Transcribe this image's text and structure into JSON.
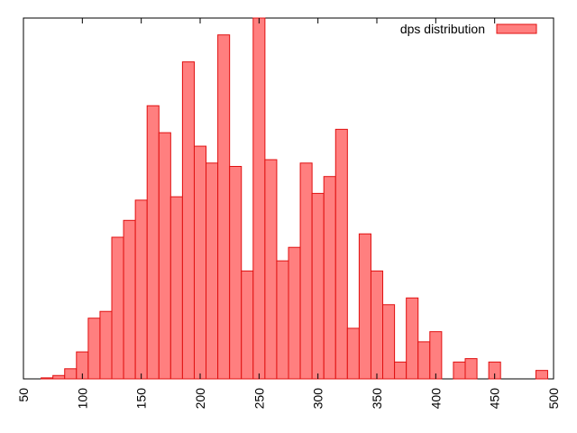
{
  "chart_data": {
    "type": "bar",
    "legend": {
      "label": "dps distribution",
      "position": "top-right"
    },
    "xlim": [
      50,
      500
    ],
    "x_ticks": [
      "50",
      "100",
      "150",
      "200",
      "250",
      "300",
      "350",
      "400",
      "450",
      "500"
    ],
    "grid": false,
    "colors": {
      "fill": "#ff7f7f",
      "stroke": "#e01010"
    },
    "bin_width": 10,
    "bins": [
      {
        "x": 70,
        "value": 0.3
      },
      {
        "x": 80,
        "value": 1
      },
      {
        "x": 90,
        "value": 3
      },
      {
        "x": 100,
        "value": 8
      },
      {
        "x": 110,
        "value": 18
      },
      {
        "x": 120,
        "value": 20
      },
      {
        "x": 130,
        "value": 42
      },
      {
        "x": 140,
        "value": 47
      },
      {
        "x": 150,
        "value": 53
      },
      {
        "x": 160,
        "value": 81
      },
      {
        "x": 170,
        "value": 73
      },
      {
        "x": 180,
        "value": 54
      },
      {
        "x": 190,
        "value": 94
      },
      {
        "x": 200,
        "value": 69
      },
      {
        "x": 210,
        "value": 64
      },
      {
        "x": 220,
        "value": 102
      },
      {
        "x": 230,
        "value": 63
      },
      {
        "x": 240,
        "value": 32
      },
      {
        "x": 250,
        "value": 107
      },
      {
        "x": 260,
        "value": 65
      },
      {
        "x": 270,
        "value": 35
      },
      {
        "x": 280,
        "value": 39
      },
      {
        "x": 290,
        "value": 64
      },
      {
        "x": 300,
        "value": 55
      },
      {
        "x": 310,
        "value": 60
      },
      {
        "x": 320,
        "value": 74
      },
      {
        "x": 330,
        "value": 15
      },
      {
        "x": 340,
        "value": 43
      },
      {
        "x": 350,
        "value": 32
      },
      {
        "x": 360,
        "value": 22
      },
      {
        "x": 370,
        "value": 5
      },
      {
        "x": 380,
        "value": 24
      },
      {
        "x": 390,
        "value": 11
      },
      {
        "x": 400,
        "value": 14
      },
      {
        "x": 420,
        "value": 5
      },
      {
        "x": 430,
        "value": 6
      },
      {
        "x": 450,
        "value": 5
      },
      {
        "x": 490,
        "value": 2.5
      }
    ],
    "ylim": [
      0,
      107
    ]
  }
}
